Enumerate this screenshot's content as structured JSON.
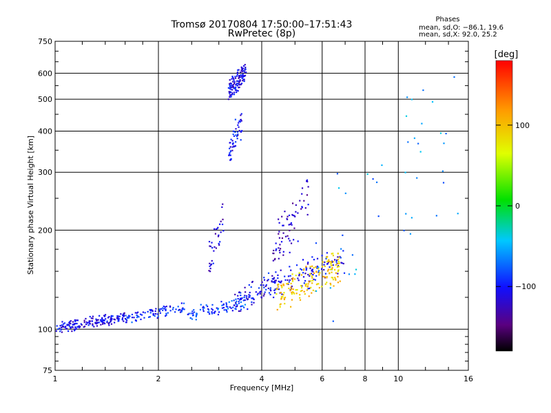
{
  "chart_data": {
    "type": "scatter",
    "title": "Tromsø 20170804 17:50:00–17:51:43",
    "subtitle": "RwPretec (8p)",
    "stats": {
      "heading": "Phases",
      "line1": "mean, sd,O: −86.1, 19.6",
      "line2": "mean, sd,X:  92.0, 25.2"
    },
    "xlabel": "Frequency [MHz]",
    "ylabel": "Stationary phase Virtual Height [km]",
    "x_scale": "log",
    "y_scale": "log",
    "xlim": [
      1,
      16
    ],
    "ylim": [
      75,
      750
    ],
    "x_ticks": [
      {
        "value": 1,
        "label": "1"
      },
      {
        "value": 2,
        "label": "2"
      },
      {
        "value": 4,
        "label": "4"
      },
      {
        "value": 6,
        "label": "6"
      },
      {
        "value": 8,
        "label": "8"
      },
      {
        "value": 10,
        "label": "10"
      },
      {
        "value": 16,
        "label": "16"
      }
    ],
    "y_ticks": [
      {
        "value": 75,
        "label": "75"
      },
      {
        "value": 100,
        "label": "100"
      },
      {
        "value": 200,
        "label": "200"
      },
      {
        "value": 300,
        "label": "300"
      },
      {
        "value": 400,
        "label": "400"
      },
      {
        "value": 500,
        "label": "500"
      },
      {
        "value": 600,
        "label": "600"
      },
      {
        "value": 750,
        "label": "750"
      }
    ],
    "grid": true,
    "colorbar": {
      "unit": "[deg]",
      "range": [
        -180,
        180
      ],
      "ticks": [
        {
          "value": 100,
          "label": "100"
        },
        {
          "value": 0,
          "label": "0"
        },
        {
          "value": -100,
          "label": "−100"
        }
      ]
    },
    "clusters": [
      {
        "x_range": [
          1.0,
          1.6
        ],
        "y_range": [
          98,
          112
        ],
        "phase": -110,
        "count": 170
      },
      {
        "x_range": [
          1.6,
          2.4
        ],
        "y_range": [
          105,
          120
        ],
        "phase": -95,
        "count": 90
      },
      {
        "x_range": [
          2.4,
          3.6
        ],
        "y_range": [
          107,
          125
        ],
        "phase": -85,
        "count": 90
      },
      {
        "x_range": [
          3.3,
          4.4
        ],
        "y_range": [
          112,
          150
        ],
        "phase": -105,
        "count": 80
      },
      {
        "x_range": [
          4.2,
          7.0
        ],
        "y_range": [
          125,
          175
        ],
        "phase": -110,
        "count": 110
      },
      {
        "x_range": [
          4.4,
          6.8
        ],
        "y_range": [
          112,
          170
        ],
        "phase": 95,
        "count": 160
      },
      {
        "x_range": [
          4.3,
          5.5
        ],
        "y_range": [
          150,
          290
        ],
        "phase": -120,
        "count": 70
      },
      {
        "x_range": [
          3.2,
          3.6
        ],
        "y_range": [
          500,
          640
        ],
        "phase": -110,
        "count": 120
      },
      {
        "x_range": [
          3.2,
          3.5
        ],
        "y_range": [
          315,
          470
        ],
        "phase": -105,
        "count": 55
      },
      {
        "x_range": [
          2.8,
          3.1
        ],
        "y_range": [
          150,
          240
        ],
        "phase": -115,
        "count": 35
      },
      {
        "x_range": [
          5.7,
          16.0
        ],
        "y_range": [
          100,
          650
        ],
        "phase": -60,
        "count": 45
      }
    ]
  }
}
